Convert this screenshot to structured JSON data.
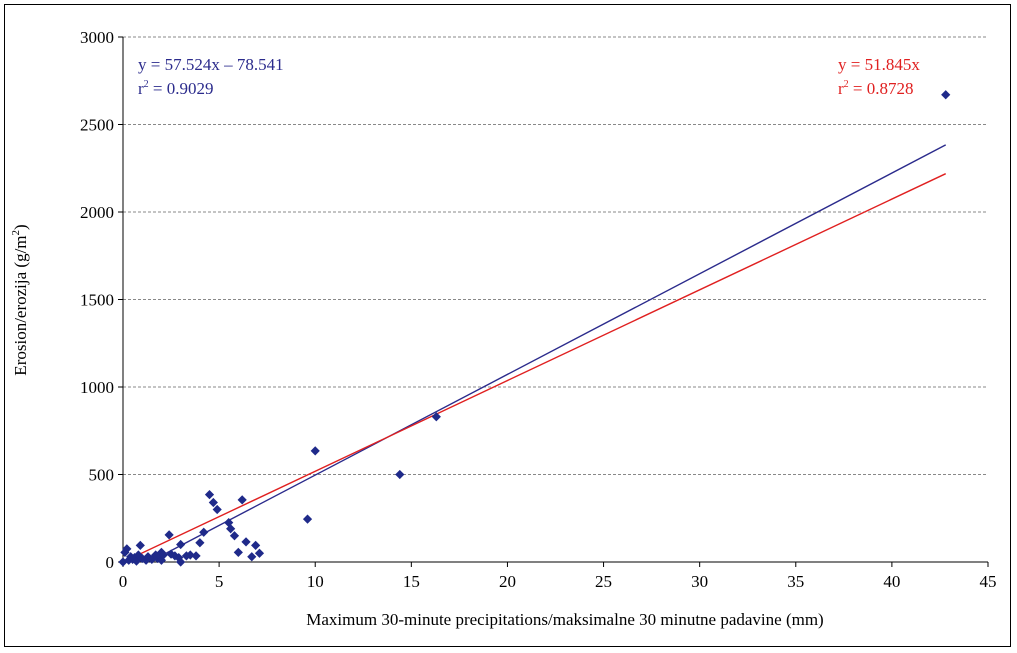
{
  "chart_data": {
    "type": "scatter",
    "xlabel": "Maximum 30-minute precipitations/maksimalne 30 minutne padavine (mm)",
    "ylabel": {
      "main": "Erosion/erozija (g/m",
      "sup": "2",
      "end": ")"
    },
    "xlim": [
      0,
      45
    ],
    "ylim": [
      0,
      3000
    ],
    "xticks": [
      0,
      5,
      10,
      15,
      20,
      25,
      30,
      35,
      40,
      45
    ],
    "yticks": [
      0,
      500,
      1000,
      1500,
      2000,
      2500,
      3000
    ],
    "grid": "horizontal dashed",
    "colors": {
      "points": "#1f2a8a",
      "line_intercept": "#2b2b8c",
      "line_origin": "#e02020",
      "grid": "#888888"
    },
    "series": [
      {
        "marker": "diamond",
        "points": [
          [
            0,
            0
          ],
          [
            0.1,
            55
          ],
          [
            0.2,
            75
          ],
          [
            0.3,
            10
          ],
          [
            0.4,
            30
          ],
          [
            0.5,
            15
          ],
          [
            0.6,
            25
          ],
          [
            0.7,
            5
          ],
          [
            0.8,
            40
          ],
          [
            0.9,
            95
          ],
          [
            1.0,
            20
          ],
          [
            1.2,
            10
          ],
          [
            1.3,
            30
          ],
          [
            1.5,
            15
          ],
          [
            1.7,
            40
          ],
          [
            1.8,
            20
          ],
          [
            1.9,
            35
          ],
          [
            2.0,
            55
          ],
          [
            2.0,
            10
          ],
          [
            2.1,
            40
          ],
          [
            2.4,
            155
          ],
          [
            2.5,
            45
          ],
          [
            2.7,
            35
          ],
          [
            2.9,
            25
          ],
          [
            3.0,
            100
          ],
          [
            3.0,
            0
          ],
          [
            3.3,
            35
          ],
          [
            3.5,
            40
          ],
          [
            3.8,
            35
          ],
          [
            4.0,
            110
          ],
          [
            4.2,
            170
          ],
          [
            4.5,
            385
          ],
          [
            4.7,
            340
          ],
          [
            4.9,
            300
          ],
          [
            5.5,
            225
          ],
          [
            5.6,
            190
          ],
          [
            5.8,
            150
          ],
          [
            6.0,
            55
          ],
          [
            6.2,
            355
          ],
          [
            6.4,
            115
          ],
          [
            6.7,
            30
          ],
          [
            6.9,
            95
          ],
          [
            7.1,
            50
          ],
          [
            9.6,
            245
          ],
          [
            10.0,
            635
          ],
          [
            14.4,
            500
          ],
          [
            16.3,
            830
          ],
          [
            42.8,
            2670
          ]
        ]
      }
    ],
    "fits": [
      {
        "equation": "y = 57.524x – 78.541",
        "r2_label": "r",
        "r2_sup": "2",
        "r2_value": " = 0.9029",
        "slope": 57.524,
        "intercept": -78.541,
        "x_start": 1.37,
        "x_end": 42.8,
        "color": "#2b2b8c",
        "label_position": "top-left"
      },
      {
        "equation": "y = 51.845x",
        "r2_label": "r",
        "r2_sup": "2",
        "r2_value": " = 0.8728",
        "slope": 51.845,
        "intercept": 0,
        "x_start": 0,
        "x_end": 42.8,
        "color": "#e02020",
        "label_position": "top-right"
      }
    ]
  }
}
